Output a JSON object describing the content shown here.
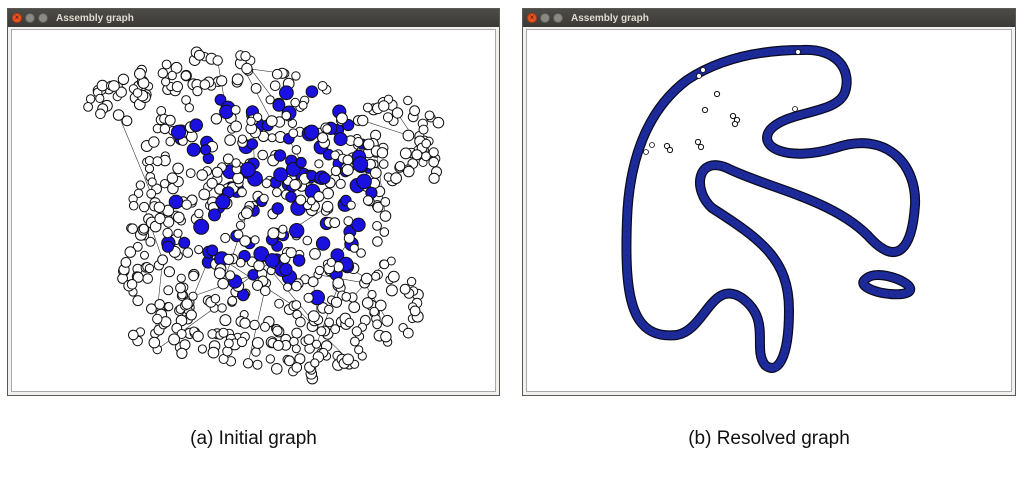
{
  "windows": [
    {
      "title": "Assembly graph",
      "caption": "(a) Initial graph",
      "content": "dense tangled assembly graph of white and blue nodes"
    },
    {
      "title": "Assembly graph",
      "caption": "(b) Resolved graph",
      "content": "resolved graph forming long node chains"
    }
  ],
  "colors": {
    "node_blue": "#1a10e0",
    "node_white": "#ffffff",
    "node_outline": "#111111",
    "chain_fill": "#1d2a9a",
    "edge": "#333333",
    "titlebar": "#3c3b37",
    "close_button": "#e95420"
  },
  "icons": {
    "close": "close-icon",
    "minimize": "minimize-icon",
    "maximize": "maximize-icon"
  }
}
